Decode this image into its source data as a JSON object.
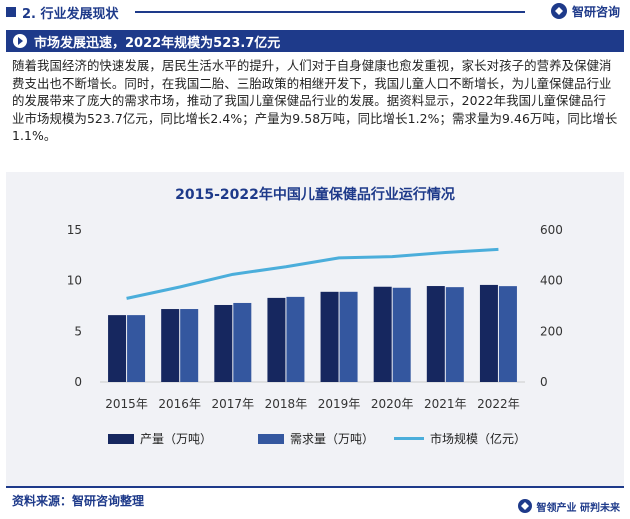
{
  "header": {
    "section_title": "2. 行业发展现状",
    "brand_name": "智研咨询"
  },
  "banner": {
    "text": "市场发展迅速，2022年规模为523.7亿元"
  },
  "paragraph": "随着我国经济的快速发展，居民生活水平的提升，人们对于自身健康也愈发重视，家长对孩子的营养及保健消费支出也不断增长。同时，在我国二胎、三胎政策的相继开发下，我国儿童人口不断增长，为儿童保健品行业的发展带来了庞大的需求市场，推动了我国儿童保健品行业的发展。据资料显示，2022年我国儿童保健品行业市场规模为523.7亿元，同比增长2.4%；产量为9.58万吨，同比增长1.2%；需求量为9.46万吨，同比增长1.1%。",
  "chart_data": {
    "type": "bar",
    "title": "2015-2022年中国儿童保健品行业运行情况",
    "categories": [
      "2015年",
      "2016年",
      "2017年",
      "2018年",
      "2019年",
      "2020年",
      "2021年",
      "2022年"
    ],
    "series": [
      {
        "name": "产量（万吨）",
        "type": "bar",
        "axis": "left",
        "color": "#16275f",
        "values": [
          6.6,
          7.2,
          7.6,
          8.3,
          8.9,
          9.4,
          9.47,
          9.58
        ]
      },
      {
        "name": "需求量（万吨）",
        "type": "bar",
        "axis": "left",
        "color": "#34579f",
        "values": [
          6.6,
          7.2,
          7.8,
          8.4,
          8.9,
          9.3,
          9.36,
          9.46
        ]
      },
      {
        "name": "市场规模（亿元）",
        "type": "line",
        "axis": "right",
        "color": "#4baedb",
        "values": [
          330,
          375,
          425,
          455,
          490,
          495,
          511.4,
          523.7
        ]
      }
    ],
    "ylim_left": [
      0,
      15
    ],
    "yticks_left": [
      "0",
      "5",
      "10",
      "15"
    ],
    "ylim_right": [
      0,
      600
    ],
    "yticks_right": [
      "0",
      "200",
      "400",
      "600"
    ],
    "grid": false,
    "legend_position": "bottom"
  },
  "footer": {
    "source": "资料来源：智研咨询整理",
    "slogan": "智领产业  研判未来"
  }
}
